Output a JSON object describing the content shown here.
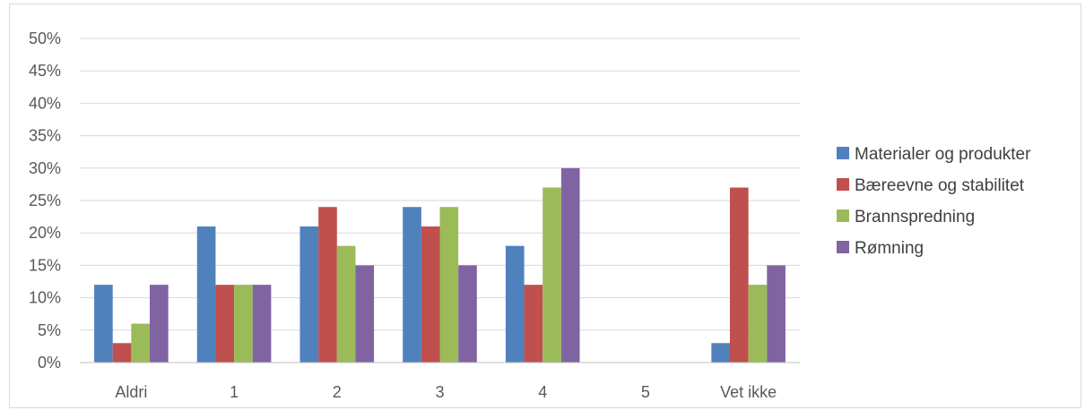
{
  "chart_data": {
    "type": "bar",
    "categories": [
      "Aldri",
      "1",
      "2",
      "3",
      "4",
      "5",
      "Vet ikke"
    ],
    "series": [
      {
        "name": "Materialer og produkter",
        "color": "#4f81bd",
        "values": [
          12,
          21,
          21,
          24,
          18,
          0,
          3
        ]
      },
      {
        "name": "Bæreevne og stabilitet",
        "color": "#c0504d",
        "values": [
          3,
          12,
          24,
          21,
          12,
          0,
          27
        ]
      },
      {
        "name": "Brannspredning",
        "color": "#9bbb59",
        "values": [
          6,
          12,
          18,
          24,
          27,
          0,
          12
        ]
      },
      {
        "name": "Rømning",
        "color": "#8064a2",
        "values": [
          12,
          12,
          15,
          15,
          30,
          0,
          15
        ]
      }
    ],
    "y_ticks": [
      "0%",
      "5%",
      "10%",
      "15%",
      "20%",
      "25%",
      "30%",
      "35%",
      "40%",
      "45%",
      "50%"
    ],
    "ylim": [
      0,
      50
    ],
    "y_unit": "%",
    "grid": true,
    "legend_position": "right",
    "title": "",
    "xlabel": "",
    "ylabel": ""
  }
}
